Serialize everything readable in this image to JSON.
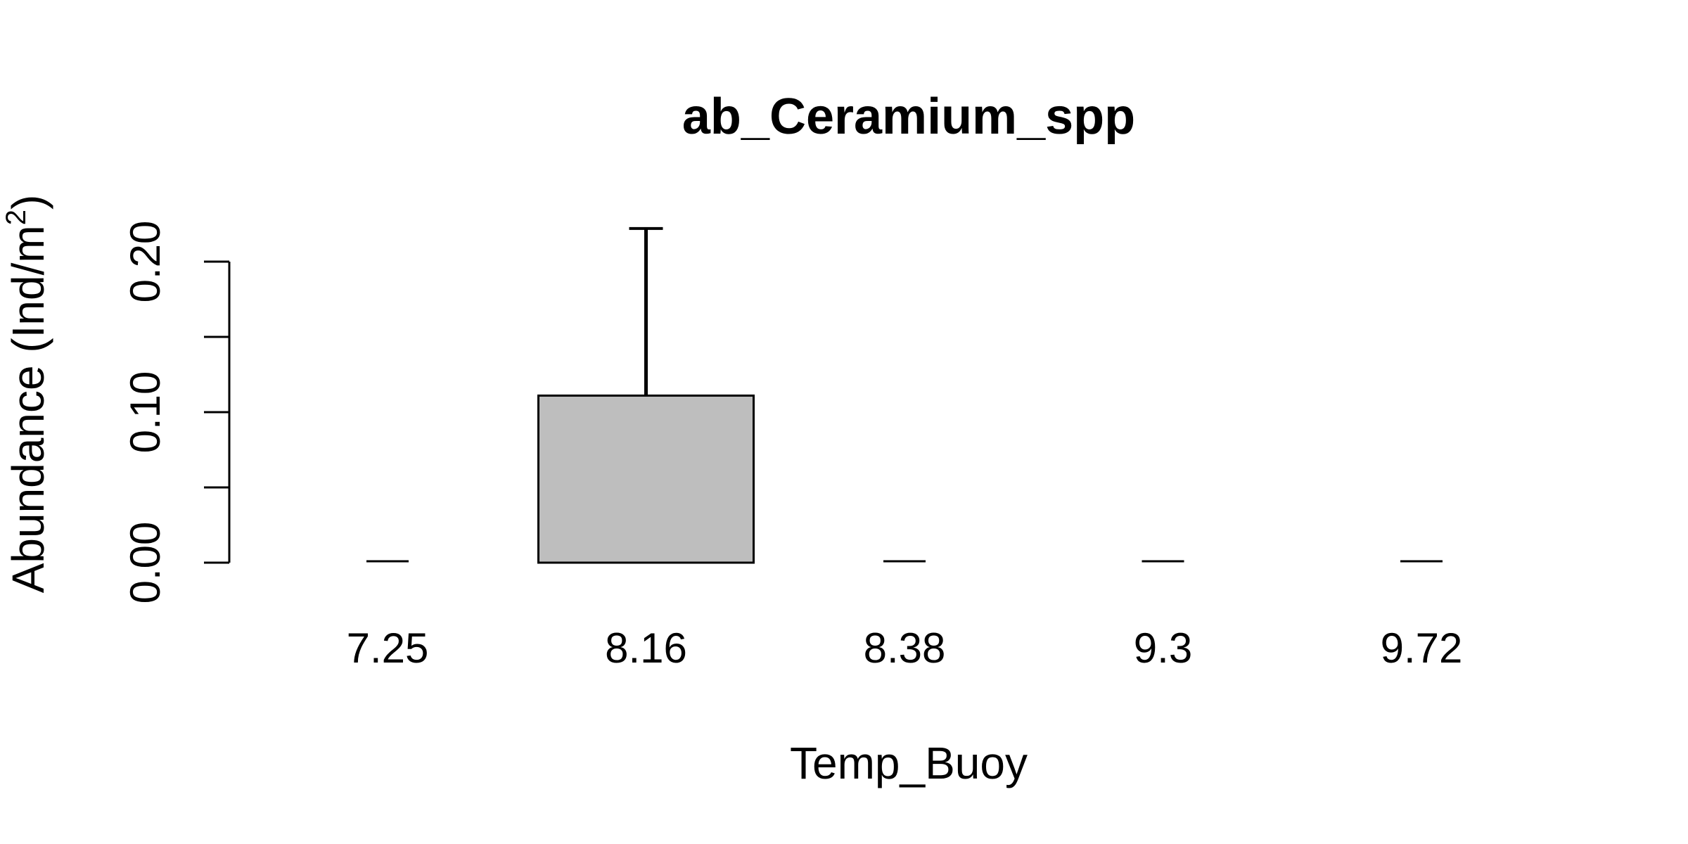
{
  "chart_data": {
    "type": "bar",
    "title": "ab_Ceramium_spp",
    "xlabel": "Temp_Buoy",
    "ylabel": "Abundance (Ind/m",
    "ylabel_superscript": "2",
    "ylabel_suffix": ")",
    "categories": [
      "7.25",
      "8.16",
      "8.38",
      "9.3",
      "9.72"
    ],
    "values": [
      0,
      0.111,
      0,
      0,
      0
    ],
    "error_upper": [
      0,
      0.222,
      0,
      0,
      0
    ],
    "ylim": [
      0,
      0.2
    ],
    "y_ticks": [
      0.0,
      0.05,
      0.1,
      0.15,
      0.2
    ],
    "y_tick_labels": [
      "0.00",
      "",
      "0.10",
      "",
      "0.20"
    ],
    "grid": false,
    "legend": "none",
    "bar_color": "#bebebe",
    "stroke_color": "#000000"
  }
}
